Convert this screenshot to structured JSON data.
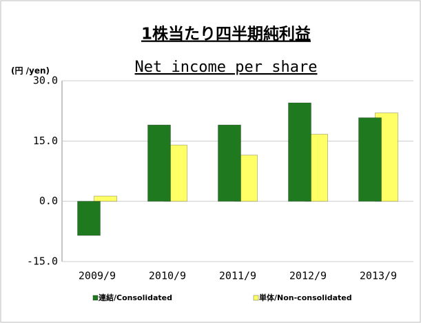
{
  "chart_data": {
    "type": "bar",
    "title": "1株当たり四半期純利益",
    "subtitle": "Net income per share",
    "y_axis_label": "(円 /yen)",
    "categories": [
      "2009/9",
      "2010/9",
      "2011/9",
      "2012/9",
      "2013/9"
    ],
    "series": [
      {
        "name": "連結/Consolidated",
        "color": "#1f7a1f",
        "values": [
          -8.5,
          19.0,
          19.0,
          24.5,
          20.8
        ]
      },
      {
        "name": "単体/Non-consolidated",
        "color": "#ffff66",
        "values": [
          1.3,
          14.0,
          11.5,
          16.7,
          22.0
        ]
      }
    ],
    "ylim": [
      -15,
      30
    ],
    "yticks": [
      {
        "value": -15,
        "label": "-15.0"
      },
      {
        "value": 0,
        "label": "0.0"
      },
      {
        "value": 15,
        "label": "15.0"
      },
      {
        "value": 30,
        "label": "30.0"
      }
    ],
    "grid": true
  }
}
